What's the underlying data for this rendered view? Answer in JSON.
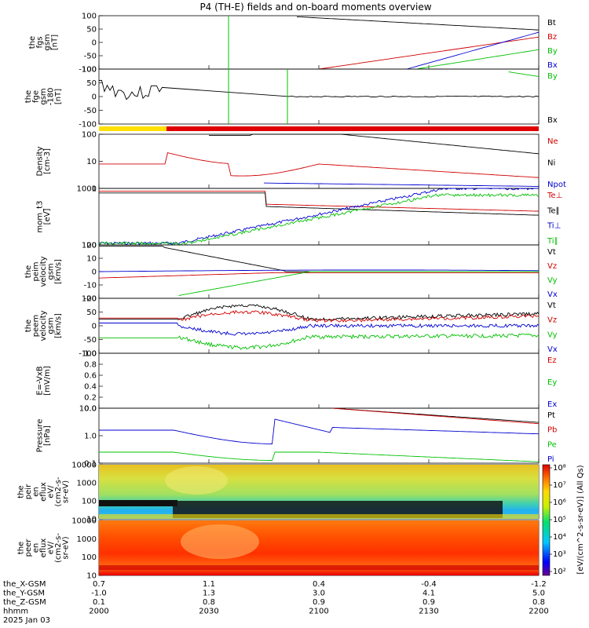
{
  "title": "P4 (TH-E) fields and on-board moments overview",
  "chart_data": {
    "type": "line",
    "x_ticks": [
      "2000",
      "2030",
      "2100",
      "2130",
      "2200"
    ],
    "footer": {
      "row_labels": [
        "the_X-GSM",
        "the_Y-GSM",
        "the_Z-GSM",
        "hhmm",
        "2025 Jan 03"
      ],
      "columns": [
        [
          "0.7",
          "-1.0",
          "0.1",
          "2000"
        ],
        [
          "1.1",
          "1.3",
          "0.8",
          "2030"
        ],
        [
          "0.4",
          "3.0",
          "0.9",
          "2100"
        ],
        [
          "-0.4",
          "4.1",
          "0.9",
          "2130"
        ],
        [
          "-1.2",
          "5.0",
          "0.8",
          "2200"
        ]
      ]
    },
    "panels": [
      {
        "id": "fgs",
        "ylabel": [
          "the",
          "fgs",
          "gsm",
          "[nT]"
        ],
        "yticks": [
          "100",
          "50",
          "0",
          "-50",
          "-100"
        ],
        "ylim": [
          -100,
          100
        ],
        "legend": [
          {
            "name": "Bt",
            "color": "#000000"
          },
          {
            "name": "Bz",
            "color": "#d00000"
          },
          {
            "name": "By",
            "color": "#00c000"
          },
          {
            "name": "Bx",
            "color": "#0000d0"
          }
        ]
      },
      {
        "id": "fge",
        "ylabel": [
          "the",
          "fge",
          "gsm",
          "-180",
          "[nT]"
        ],
        "yticks": [
          "100",
          "50",
          "0",
          "-50",
          "-100"
        ],
        "ylim": [
          -120,
          100
        ],
        "legend": [
          {
            "name": "By",
            "color": "#00c000"
          },
          {
            "name": "Bx",
            "color": "#000000"
          }
        ]
      },
      {
        "id": "density",
        "ylabel": [
          "Density",
          "[cm-3]"
        ],
        "yticks": [
          "100",
          "10",
          "1"
        ],
        "log": true,
        "legend": [
          {
            "name": "Ne",
            "color": "#d00000"
          },
          {
            "name": "Ni",
            "color": "#000000"
          },
          {
            "name": "Npot",
            "color": "#0000d0"
          }
        ]
      },
      {
        "id": "temp",
        "ylabel": [
          "mom_t3",
          "[eV]"
        ],
        "yticks": [
          "1000",
          "100"
        ],
        "log": true,
        "legend": [
          {
            "name": "Te⊥",
            "color": "#d00000"
          },
          {
            "name": "Te∥",
            "color": "#000000"
          },
          {
            "name": "Ti⊥",
            "color": "#0000d0"
          },
          {
            "name": "Ti∥",
            "color": "#00c000"
          }
        ]
      },
      {
        "id": "peim",
        "ylabel": [
          "the",
          "peim",
          "velocity",
          "gsm",
          "[km/s]"
        ],
        "yticks": [
          "20",
          "10",
          "0",
          "-10",
          "-20"
        ],
        "ylim": [
          -25,
          25
        ],
        "legend": [
          {
            "name": "Vt",
            "color": "#000000"
          },
          {
            "name": "Vz",
            "color": "#d00000"
          },
          {
            "name": "Vy",
            "color": "#00c000"
          },
          {
            "name": "Vx",
            "color": "#0000d0"
          }
        ]
      },
      {
        "id": "peem",
        "ylabel": [
          "the",
          "peem",
          "velocity",
          "gsm",
          "[km/s]"
        ],
        "yticks": [
          "100",
          "50",
          "0",
          "-50",
          "-100"
        ],
        "ylim": [
          -100,
          100
        ],
        "legend": [
          {
            "name": "Vt",
            "color": "#000000"
          },
          {
            "name": "Vz",
            "color": "#d00000"
          },
          {
            "name": "Vy",
            "color": "#00c000"
          },
          {
            "name": "Vx",
            "color": "#0000d0"
          }
        ]
      },
      {
        "id": "efield",
        "ylabel": [
          "E=-VxB",
          "[mV/m]"
        ],
        "yticks": [
          "1.0",
          "0.8",
          "0.6",
          "0.4",
          "0.2",
          "0.0"
        ],
        "ylim": [
          0,
          1
        ],
        "legend": [
          {
            "name": "Ez",
            "color": "#d00000"
          },
          {
            "name": "Ey",
            "color": "#00c000"
          },
          {
            "name": "Ex",
            "color": "#0000d0"
          }
        ]
      },
      {
        "id": "pressure",
        "ylabel": [
          "Pressure",
          "[nPa]"
        ],
        "yticks": [
          "10.0",
          "1.0",
          "0.1"
        ],
        "log": true,
        "legend": [
          {
            "name": "Pt",
            "color": "#000000"
          },
          {
            "name": "Pb",
            "color": "#d00000"
          },
          {
            "name": "Pe",
            "color": "#00c000"
          },
          {
            "name": "Pi",
            "color": "#0000d0"
          }
        ]
      },
      {
        "id": "peir",
        "ylabel": [
          "the",
          "peir",
          "en",
          "eflux",
          "eV/",
          "(cm2-s-",
          "sr-eV)"
        ],
        "yticks": [
          "10000",
          "1000",
          "100",
          "10"
        ]
      },
      {
        "id": "peer",
        "ylabel": [
          "the",
          "peer",
          "en",
          "eflux",
          "eV/",
          "(cm2-s-",
          "sr-eV)"
        ],
        "yticks": [
          "10000",
          "1000",
          "100",
          "10"
        ]
      }
    ],
    "colorbar": {
      "tick_labels": [
        "10⁸",
        "10⁷",
        "10⁶",
        "10⁵",
        "10⁴",
        "10³",
        "10²"
      ],
      "label": "[eV/(cm^2-s-sr-eV)] (All Qs)"
    }
  }
}
